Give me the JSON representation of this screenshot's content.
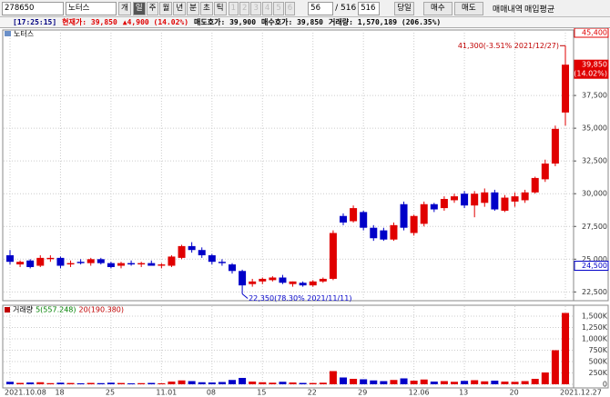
{
  "toolbar": {
    "code": "278650",
    "name": "노터스",
    "unit": "개",
    "periods": [
      "일",
      "주",
      "월",
      "년",
      "분",
      "초",
      "틱"
    ],
    "numbers": [
      "1",
      "2",
      "3",
      "4",
      "5",
      "6"
    ],
    "count": "56",
    "total": "/ 516",
    "total2": "516",
    "today": "당일",
    "buy": "매수",
    "sell": "매도",
    "history": "매매내역",
    "avg": "매입평균"
  },
  "info_bar": [
    {
      "text": "[17:25:15]",
      "color": "#000080"
    },
    {
      "text": "현재가: 39,850",
      "color": "#e00000"
    },
    {
      "text": "▲4,900 (14.02%)",
      "color": "#e00000"
    },
    {
      "text": "매도호가: 39,900",
      "color": "#000000"
    },
    {
      "text": "매수호가: 39,850",
      "color": "#000000"
    },
    {
      "text": "거래량: 1,570,189 (206.35%)",
      "color": "#000000"
    }
  ],
  "chart_data": [
    {
      "type": "candlestick",
      "title": "노터스",
      "up_color": "#e00000",
      "down_color": "#0000c8",
      "grid": true,
      "categories": [
        "2021.10.08",
        null,
        null,
        null,
        null,
        "18",
        null,
        null,
        null,
        null,
        "25",
        null,
        null,
        null,
        null,
        "11.01",
        null,
        null,
        null,
        null,
        "08",
        null,
        null,
        null,
        null,
        "15",
        null,
        null,
        null,
        null,
        "22",
        null,
        null,
        null,
        null,
        "29",
        null,
        null,
        null,
        null,
        "12.06",
        null,
        null,
        null,
        null,
        "13",
        null,
        null,
        null,
        null,
        "20",
        null,
        null,
        null,
        null,
        "2021.12.27"
      ],
      "open": [
        25300,
        24600,
        24900,
        24500,
        25000,
        25100,
        24600,
        24800,
        24700,
        25000,
        24700,
        24500,
        24700,
        24600,
        24700,
        24500,
        24500,
        25100,
        26000,
        25700,
        25300,
        24800,
        24600,
        24100,
        23100,
        23300,
        23400,
        23600,
        23100,
        23200,
        23000,
        23300,
        23500,
        28300,
        27900,
        28600,
        27400,
        27200,
        26500,
        29200,
        27000,
        27700,
        29200,
        28900,
        29500,
        30000,
        29100,
        29300,
        30100,
        28700,
        29400,
        29500,
        30100,
        31100,
        32300,
        36200
      ],
      "high": [
        25700,
        24900,
        25000,
        25300,
        25300,
        25200,
        24900,
        25000,
        25100,
        25100,
        24800,
        24800,
        24900,
        24800,
        24900,
        24700,
        25300,
        26100,
        26300,
        25900,
        25400,
        25000,
        24700,
        24200,
        23500,
        23600,
        23700,
        23800,
        23300,
        23300,
        23400,
        23600,
        27200,
        28500,
        29100,
        28700,
        27600,
        27400,
        27800,
        29400,
        28400,
        29400,
        29300,
        29800,
        30000,
        30200,
        30200,
        30400,
        30300,
        29900,
        30100,
        30300,
        31300,
        32600,
        35200,
        41300
      ],
      "low": [
        24600,
        24400,
        24300,
        24400,
        24800,
        24300,
        24400,
        24600,
        24500,
        24600,
        24300,
        24300,
        24500,
        24400,
        24500,
        24300,
        24400,
        25000,
        25500,
        25100,
        24600,
        24500,
        23900,
        22350,
        22900,
        23100,
        23300,
        23100,
        22900,
        22900,
        22900,
        23200,
        23400,
        27600,
        27800,
        27200,
        26400,
        26400,
        26400,
        27200,
        26800,
        27500,
        28600,
        28700,
        29300,
        28900,
        28200,
        29000,
        28700,
        28600,
        29000,
        29300,
        30000,
        30900,
        32100,
        35200
      ],
      "close": [
        24800,
        24800,
        24400,
        25100,
        25100,
        24500,
        24700,
        24700,
        25000,
        24700,
        24400,
        24700,
        24600,
        24700,
        24500,
        24600,
        25200,
        26000,
        25700,
        25300,
        24800,
        24700,
        24100,
        23000,
        23300,
        23500,
        23600,
        23200,
        23300,
        23000,
        23300,
        23500,
        27000,
        27800,
        28900,
        27400,
        26600,
        26500,
        27600,
        27400,
        28300,
        29200,
        28800,
        29600,
        29800,
        29100,
        30000,
        30100,
        28800,
        29700,
        29800,
        30100,
        31200,
        32300,
        34950,
        39850
      ],
      "ylim": [
        21900,
        42500
      ],
      "yticks": [
        {
          "value": 22500,
          "label": "22,500"
        },
        {
          "value": 25000,
          "label": "25,000"
        },
        {
          "value": 27500,
          "label": "27,500"
        },
        {
          "value": 30000,
          "label": "30,000"
        },
        {
          "value": 32500,
          "label": "32,500"
        },
        {
          "value": 35000,
          "label": "35,000"
        },
        {
          "value": 37500,
          "label": "37,500"
        }
      ],
      "annotations": [
        {
          "value": 41300,
          "label": "41,300(-3.51% 2021/12/27)"
        },
        {
          "value": 22350,
          "label": "22,350(78.30% 2021/11/11)"
        }
      ],
      "badges": [
        {
          "value": 45400,
          "label": "45,400",
          "color": "#e00000",
          "filled": false
        },
        {
          "value": 39850,
          "label": "39,850",
          "sub": "(14.02%)",
          "color": "#e00000",
          "filled": true
        },
        {
          "value": 24500,
          "label": "24,500",
          "color": "#0000c8",
          "filled": false
        }
      ]
    },
    {
      "type": "bar",
      "legend": [
        {
          "text": "거래량",
          "color": "#000000"
        },
        {
          "text": "5(557.248)",
          "color": "#008000"
        },
        {
          "text": "20(190.380)",
          "color": "#c00000"
        }
      ],
      "values": [
        55,
        30,
        40,
        45,
        25,
        35,
        28,
        22,
        30,
        25,
        35,
        28,
        20,
        25,
        30,
        22,
        60,
        85,
        70,
        45,
        40,
        50,
        95,
        140,
        60,
        45,
        35,
        55,
        40,
        30,
        28,
        35,
        290,
        150,
        120,
        110,
        85,
        70,
        95,
        130,
        80,
        105,
        60,
        70,
        55,
        75,
        90,
        65,
        80,
        60,
        55,
        70,
        120,
        260,
        750,
        1570.189
      ],
      "ylim": [
        0,
        1720
      ],
      "yticks": [
        0,
        {
          "value": 250,
          "label": "250K"
        },
        {
          "value": 500,
          "label": "500K"
        },
        {
          "value": 750,
          "label": "750K"
        },
        {
          "value": 1000,
          "label": "1,000K"
        },
        {
          "value": 1250,
          "label": "1,250K"
        },
        {
          "value": 1500,
          "label": "1,500K"
        }
      ]
    }
  ]
}
